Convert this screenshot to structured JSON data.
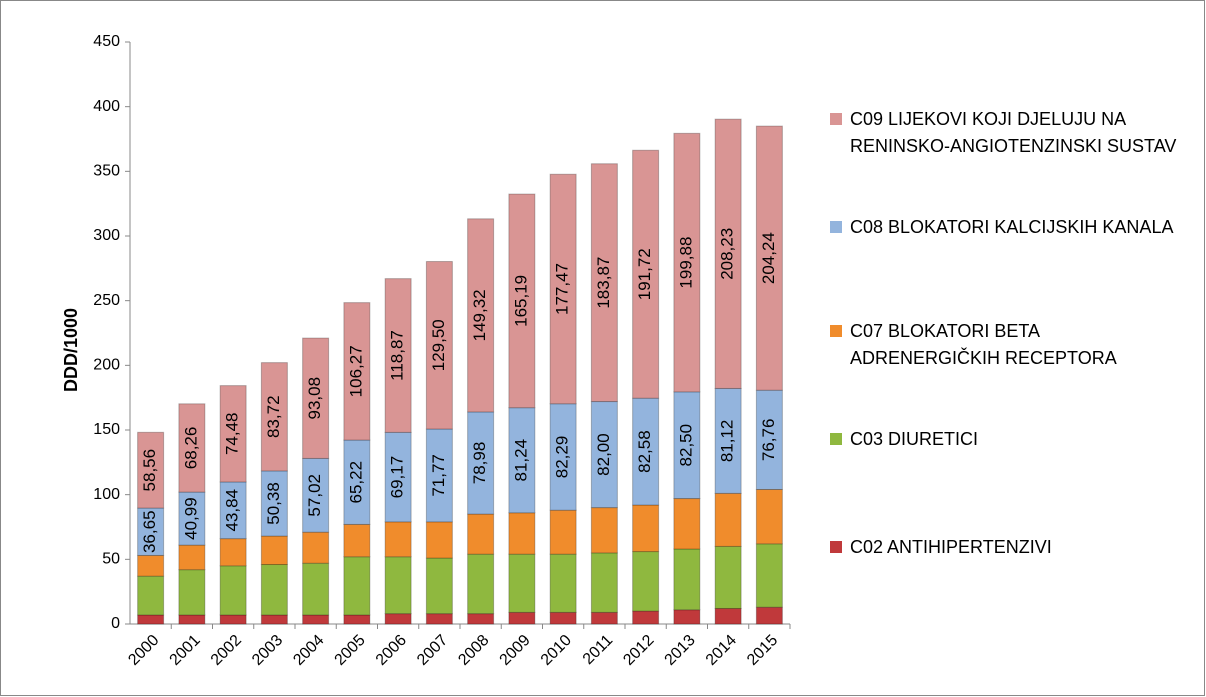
{
  "chart_data": {
    "type": "stacked_bar",
    "y_label": "DDD/1000",
    "categories": [
      "2000",
      "2001",
      "2002",
      "2003",
      "2004",
      "2005",
      "2006",
      "2007",
      "2008",
      "2009",
      "2010",
      "2011",
      "2012",
      "2013",
      "2014",
      "2015"
    ],
    "ylim": [
      0,
      450
    ],
    "yticks": [
      0,
      50,
      100,
      150,
      200,
      250,
      300,
      350,
      400,
      450
    ],
    "legend": "right",
    "series": [
      {
        "name": "C02 ANTIHIPERTENZIVI",
        "color": "#c0393b",
        "values": [
          7,
          7,
          7,
          7,
          7,
          7,
          8,
          8,
          8,
          9,
          9,
          9,
          10,
          11,
          12,
          13
        ]
      },
      {
        "name": "C03 DIURETICI",
        "color": "#8fb83f",
        "values": [
          30,
          35,
          38,
          39,
          40,
          45,
          44,
          43,
          46,
          45,
          45,
          46,
          46,
          47,
          48,
          49
        ]
      },
      {
        "name": "C07 BLOKATORI BETA ADRENERGIČKIH RECEPTORA",
        "color": "#f08c2c",
        "values": [
          16,
          19,
          21,
          22,
          24,
          25,
          27,
          28,
          31,
          32,
          34,
          35,
          36,
          39,
          41,
          42
        ]
      },
      {
        "name": "C08 BLOKATORI KALCIJSKIH KANALA",
        "color": "#93b4dd",
        "values": [
          36.65,
          40.99,
          43.84,
          50.38,
          57.02,
          65.22,
          69.17,
          71.77,
          78.98,
          81.24,
          82.29,
          82.0,
          82.58,
          82.5,
          81.12,
          76.76
        ],
        "value_labels": [
          "36,65",
          "40,99",
          "43,84",
          "50,38",
          "57,02",
          "65,22",
          "69,17",
          "71,77",
          "78,98",
          "81,24",
          "82,29",
          "82,00",
          "82,58",
          "82,50",
          "81,12",
          "76,76"
        ]
      },
      {
        "name": "C09 LIJEKOVI KOJI DJELUJU NA RENINSKO-ANGIOTENZINSKI SUSTAV",
        "color": "#d99594",
        "values": [
          58.56,
          68.26,
          74.48,
          83.72,
          93.08,
          106.27,
          118.87,
          129.5,
          149.32,
          165.19,
          177.47,
          183.87,
          191.72,
          199.88,
          208.23,
          204.24
        ],
        "value_labels": [
          "58,56",
          "68,26",
          "74,48",
          "83,72",
          "93,08",
          "106,27",
          "118,87",
          "129,50",
          "149,32",
          "165,19",
          "177,47",
          "183,87",
          "191,72",
          "199,88",
          "208,23",
          "204,24"
        ]
      }
    ]
  }
}
